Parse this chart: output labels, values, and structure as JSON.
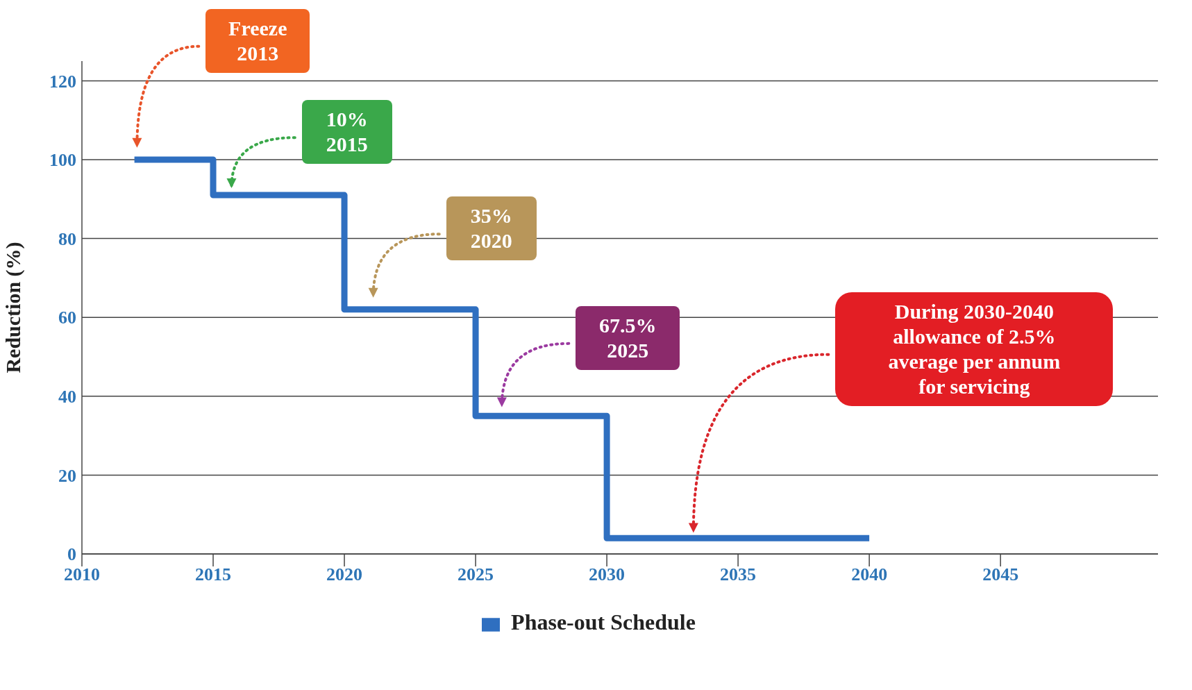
{
  "chart_data": {
    "type": "step",
    "ylabel": "Reduction (%)",
    "x": [
      2012,
      2015,
      2020,
      2025,
      2030,
      2040
    ],
    "series": [
      {
        "name": "Phase-out Schedule",
        "color": "#2f6fc0",
        "values": [
          100,
          91,
          62,
          35,
          4,
          4
        ]
      }
    ],
    "xlim": [
      2010,
      2051
    ],
    "xticks": [
      2010,
      2015,
      2020,
      2025,
      2030,
      2035,
      2040,
      2045
    ],
    "ylim": [
      0,
      125
    ],
    "yticks": [
      0,
      20,
      40,
      60,
      80,
      100,
      120
    ],
    "grid": "y",
    "legend": "bottom",
    "marker": "none",
    "line_style": "solid",
    "annotations": [
      "Freeze\n2013",
      "10%\n2015",
      "35%\n2020",
      "67.5%\n2025",
      "During 2030-2040\nallowance of 2.5%\naverage per annum\nfor servicing"
    ]
  }
}
